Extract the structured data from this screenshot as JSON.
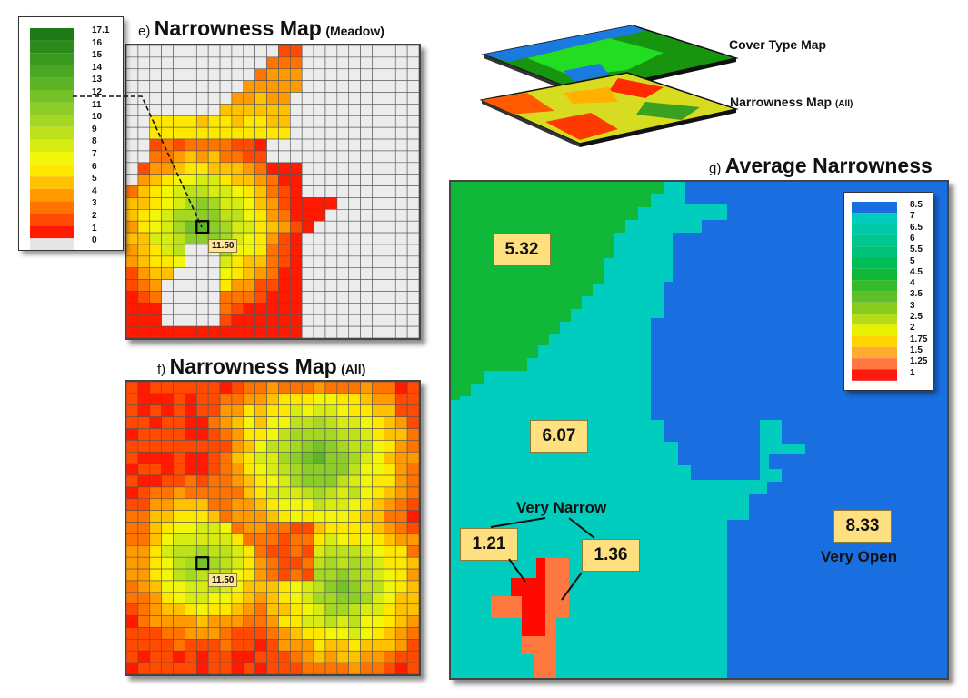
{
  "panel_e": {
    "prefix": "e)",
    "title": "Narrowness Map",
    "subtitle": "(Meadow)",
    "callout": "11.50"
  },
  "panel_f": {
    "prefix": "f)",
    "title": "Narrowness Map",
    "subtitle": "(All)",
    "callout": "11.50"
  },
  "panel_g": {
    "prefix": "g)",
    "title": "Average Narrowness",
    "regions": {
      "meadow_value": "5.32",
      "mid_value": "6.07",
      "open_value": "8.33",
      "narrow_left_value": "1.21",
      "narrow_right_value": "1.36"
    },
    "very_narrow_label": "Very Narrow",
    "very_open_label": "Very Open"
  },
  "layers": {
    "cover_type_label": "Cover Type Map",
    "narrowness_label": "Narrowness Map",
    "narrowness_sub": "(All)"
  },
  "legend_left": {
    "labels": [
      "17.1",
      "16",
      "15",
      "14",
      "13",
      "12",
      "11",
      "10",
      "9",
      "8",
      "7",
      "6",
      "5",
      "4",
      "3",
      "2",
      "1",
      "0"
    ],
    "colors": [
      "#1e7a14",
      "#2a8a1a",
      "#3a9a20",
      "#4aa823",
      "#5cb526",
      "#74c228",
      "#8ccd27",
      "#a4d823",
      "#bde21c",
      "#d6ec13",
      "#f2f60a",
      "#ffe800",
      "#ffc200",
      "#ff9a00",
      "#ff7400",
      "#ff4a00",
      "#ff1a00",
      "#e6e6e6"
    ]
  },
  "legend_right": {
    "labels": [
      "8.5",
      "7",
      "6.5",
      "6",
      "5.5",
      "5",
      "4.5",
      "4",
      "3.5",
      "3",
      "2.5",
      "2",
      "1.75",
      "1.5",
      "1.25",
      "1"
    ],
    "colors": [
      "#1a6fe0",
      "#00cdbd",
      "#00c8a8",
      "#00c690",
      "#00c278",
      "#00bc55",
      "#10b83a",
      "#35bb2a",
      "#5ec028",
      "#88cc20",
      "#b5dc18",
      "#e6f000",
      "#ffd400",
      "#ffac30",
      "#ff7840",
      "#ff1a10"
    ]
  },
  "colors": {
    "open_blue": "#1a6fe0",
    "mid_teal": "#00cdbd",
    "meadow_green": "#10b83a",
    "narrow_red": "#ff0a00",
    "narrow_orange": "#ff7840",
    "callout_fill": "#ffe080"
  }
}
